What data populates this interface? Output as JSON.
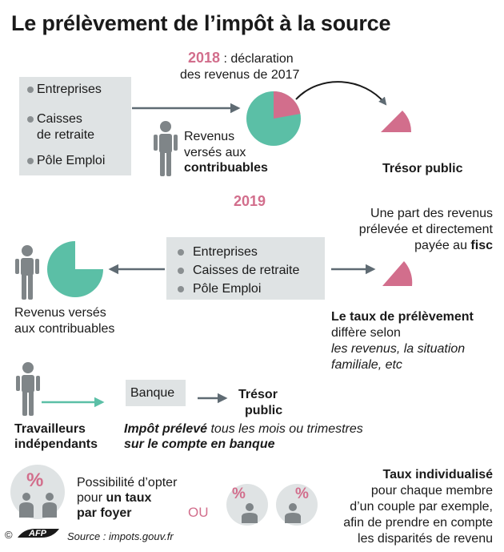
{
  "title": "Le prélèvement de l’impôt à la source",
  "s2018": {
    "year": "2018",
    "line1_rest": " : déclaration",
    "line2": "des revenus de 2017",
    "payers": [
      "Entreprises",
      "Caisses",
      "de retraite",
      "Pôle Emploi"
    ],
    "recipients_line1": "Revenus",
    "recipients_line2": "versés aux",
    "recipients_line3": "contribuables",
    "treasury": "Trésor public"
  },
  "s2019": {
    "year": "2019",
    "payers": [
      "Entreprises",
      "Caisses de retraite",
      "Pôle Emploi"
    ],
    "share_line1": "Une part des revenus",
    "share_line2": "prélevée et directement",
    "share_line3_a": "payée au ",
    "share_line3_b": "fisc",
    "recipients_line1": "Revenus versés",
    "recipients_line2": "aux contribuables",
    "rate_title": "Le taux de prélèvement",
    "rate_line1": "diffère selon",
    "rate_line2": "les revenus, la situation",
    "rate_line3": "familiale, etc"
  },
  "independents": {
    "label_line1": "Travailleurs",
    "label_line2": "indépendants",
    "bank": "Banque",
    "treasury_line1": "Trésor",
    "treasury_line2": "public",
    "note_line1_a": "Impôt prélevé",
    "note_line1_b": " tous les mois ou trimestres",
    "note_line2": "sur le compte en banque"
  },
  "options": {
    "household_line1": "Possibilité d’opter",
    "household_line2_a": "pour ",
    "household_line2_b": "un taux",
    "household_line3": "par foyer",
    "or": "OU",
    "indiv_title": "Taux individualisé",
    "indiv_line1": "pour chaque membre",
    "indiv_line2": "d’un couple par exemple,",
    "indiv_line3": "afin de prendre en compte",
    "indiv_line4": "les disparités de revenu",
    "percent": "%"
  },
  "footer": {
    "copyright": "©",
    "agency": "AFP",
    "source": "Source : impots.gouv.fr"
  },
  "colors": {
    "teal": "#5bbfa6",
    "pink": "#d26e8c",
    "grey_person": "#7f8588",
    "box": "#dfe3e4",
    "arrow": "#5f6b73"
  }
}
